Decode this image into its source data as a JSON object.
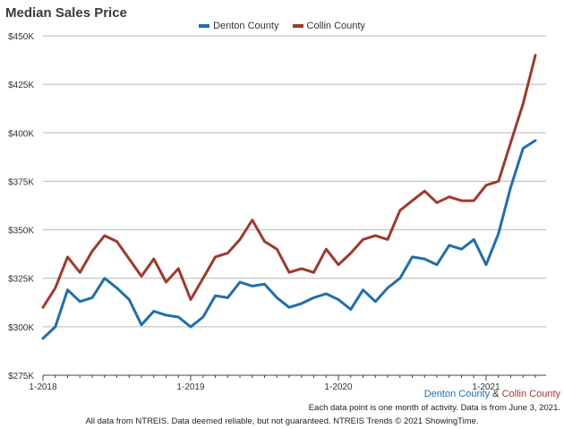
{
  "chart_data": {
    "type": "line",
    "title": "Median Sales Price",
    "y_ticks": [
      "$275K",
      "$300K",
      "$325K",
      "$350K",
      "$375K",
      "$400K",
      "$425K",
      "$450K"
    ],
    "y_tick_values": [
      275,
      300,
      325,
      350,
      375,
      400,
      425,
      450
    ],
    "ylim": [
      275,
      450
    ],
    "x_tick_labels": [
      "1-2018",
      "1-2019",
      "1-2020",
      "1-2021"
    ],
    "x_tick_index": [
      0,
      12,
      24,
      36
    ],
    "x_count": 41,
    "grid": true,
    "legend_position": "top-center",
    "series": [
      {
        "name": "Denton County",
        "color": "#1f6fad",
        "values": [
          294,
          300,
          319,
          313,
          315,
          325,
          320,
          314,
          301,
          308,
          306,
          305,
          300,
          305,
          316,
          315,
          323,
          321,
          322,
          315,
          310,
          312,
          315,
          317,
          314,
          309,
          319,
          313,
          320,
          325,
          336,
          335,
          332,
          342,
          340,
          345,
          332,
          348,
          372,
          392,
          396
        ]
      },
      {
        "name": "Collin County",
        "color": "#9e3a2c",
        "values": [
          310,
          320,
          336,
          328,
          339,
          347,
          344,
          335,
          326,
          335,
          323,
          330,
          314,
          325,
          336,
          338,
          345,
          355,
          344,
          340,
          328,
          330,
          328,
          340,
          332,
          338,
          345,
          347,
          345,
          360,
          365,
          370,
          364,
          367,
          365,
          365,
          373,
          375,
          395,
          415,
          440
        ]
      }
    ]
  },
  "footer": {
    "series_a": "Denton County",
    "amp": " & ",
    "series_b": "Collin County",
    "note": "Each data point is one month of activity. Data is from June 3, 2021.",
    "credit": "All data from NTREIS. Data deemed reliable, but not guaranteed. NTREIS Trends © 2021 ShowingTime."
  }
}
